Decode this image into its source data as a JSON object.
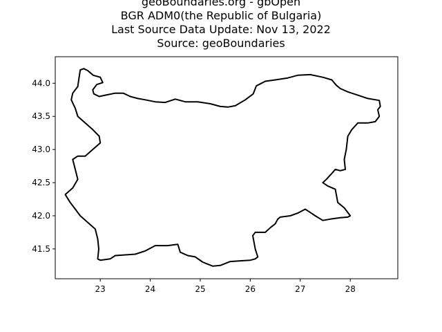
{
  "title_lines": [
    "geoBoundaries.org - gbOpen",
    "BGR ADM0(the Republic of Bulgaria)",
    "Last Source Data Update: Nov 13, 2022",
    "Source: geoBoundaries"
  ],
  "map": {
    "x_range": [
      22.1,
      28.95
    ],
    "y_range": [
      41.05,
      44.4
    ],
    "x_ticks": [
      23,
      24,
      25,
      26,
      27,
      28
    ],
    "y_ticks": [
      41.5,
      42.0,
      42.5,
      43.0,
      43.5,
      44.0
    ],
    "x_tick_labels": [
      "23",
      "24",
      "25",
      "26",
      "27",
      "28"
    ],
    "y_tick_labels": [
      "41.5",
      "42.0",
      "42.5",
      "43.0",
      "43.5",
      "44.0"
    ],
    "boundary_color": "#000000",
    "boundary": [
      [
        22.67,
        44.22
      ],
      [
        22.75,
        44.19
      ],
      [
        22.86,
        44.12
      ],
      [
        23.0,
        44.09
      ],
      [
        23.05,
        44.01
      ],
      [
        22.93,
        43.98
      ],
      [
        22.85,
        43.9
      ],
      [
        22.87,
        43.84
      ],
      [
        22.98,
        43.8
      ],
      [
        23.1,
        43.82
      ],
      [
        23.3,
        43.85
      ],
      [
        23.46,
        43.85
      ],
      [
        23.6,
        43.8
      ],
      [
        23.75,
        43.77
      ],
      [
        23.9,
        43.75
      ],
      [
        24.1,
        43.72
      ],
      [
        24.3,
        43.71
      ],
      [
        24.5,
        43.76
      ],
      [
        24.7,
        43.72
      ],
      [
        24.95,
        43.72
      ],
      [
        25.2,
        43.69
      ],
      [
        25.4,
        43.65
      ],
      [
        25.55,
        43.64
      ],
      [
        25.7,
        43.66
      ],
      [
        25.9,
        43.75
      ],
      [
        26.06,
        43.84
      ],
      [
        26.12,
        43.96
      ],
      [
        26.3,
        44.03
      ],
      [
        26.5,
        44.05
      ],
      [
        26.75,
        44.08
      ],
      [
        26.95,
        44.12
      ],
      [
        27.2,
        44.13
      ],
      [
        27.45,
        44.09
      ],
      [
        27.63,
        44.05
      ],
      [
        27.72,
        43.97
      ],
      [
        27.8,
        43.92
      ],
      [
        27.95,
        43.87
      ],
      [
        28.15,
        43.82
      ],
      [
        28.35,
        43.77
      ],
      [
        28.58,
        43.74
      ],
      [
        28.6,
        43.65
      ],
      [
        28.55,
        43.6
      ],
      [
        28.58,
        43.5
      ],
      [
        28.5,
        43.42
      ],
      [
        28.35,
        43.4
      ],
      [
        28.15,
        43.4
      ],
      [
        28.03,
        43.3
      ],
      [
        27.95,
        43.2
      ],
      [
        27.92,
        43.0
      ],
      [
        27.88,
        42.85
      ],
      [
        27.9,
        42.7
      ],
      [
        27.8,
        42.68
      ],
      [
        27.7,
        42.7
      ],
      [
        27.62,
        42.63
      ],
      [
        27.52,
        42.55
      ],
      [
        27.45,
        42.5
      ],
      [
        27.55,
        42.45
      ],
      [
        27.7,
        42.4
      ],
      [
        27.75,
        42.2
      ],
      [
        27.88,
        42.12
      ],
      [
        28.0,
        42.0
      ],
      [
        27.95,
        41.98
      ],
      [
        27.8,
        41.97
      ],
      [
        27.6,
        41.95
      ],
      [
        27.45,
        41.93
      ],
      [
        27.3,
        42.0
      ],
      [
        27.2,
        42.05
      ],
      [
        27.1,
        42.1
      ],
      [
        26.95,
        42.04
      ],
      [
        26.8,
        42.0
      ],
      [
        26.6,
        41.98
      ],
      [
        26.55,
        41.95
      ],
      [
        26.5,
        41.88
      ],
      [
        26.4,
        41.82
      ],
      [
        26.3,
        41.75
      ],
      [
        26.1,
        41.75
      ],
      [
        26.05,
        41.7
      ],
      [
        26.1,
        41.5
      ],
      [
        26.15,
        41.38
      ],
      [
        26.1,
        41.35
      ],
      [
        26.0,
        41.33
      ],
      [
        25.8,
        41.32
      ],
      [
        25.6,
        41.31
      ],
      [
        25.4,
        41.25
      ],
      [
        25.25,
        41.24
      ],
      [
        25.05,
        41.3
      ],
      [
        24.9,
        41.38
      ],
      [
        24.75,
        41.4
      ],
      [
        24.6,
        41.45
      ],
      [
        24.55,
        41.57
      ],
      [
        24.35,
        41.55
      ],
      [
        24.1,
        41.55
      ],
      [
        23.9,
        41.47
      ],
      [
        23.7,
        41.42
      ],
      [
        23.5,
        41.41
      ],
      [
        23.3,
        41.4
      ],
      [
        23.2,
        41.35
      ],
      [
        23.0,
        41.33
      ],
      [
        22.95,
        41.35
      ],
      [
        22.97,
        41.5
      ],
      [
        22.95,
        41.65
      ],
      [
        22.9,
        41.8
      ],
      [
        22.75,
        41.9
      ],
      [
        22.6,
        42.0
      ],
      [
        22.5,
        42.1
      ],
      [
        22.4,
        42.2
      ],
      [
        22.3,
        42.32
      ],
      [
        22.45,
        42.42
      ],
      [
        22.55,
        42.55
      ],
      [
        22.5,
        42.7
      ],
      [
        22.45,
        42.85
      ],
      [
        22.55,
        42.9
      ],
      [
        22.7,
        42.9
      ],
      [
        22.85,
        43.0
      ],
      [
        23.0,
        43.1
      ],
      [
        22.98,
        43.2
      ],
      [
        22.85,
        43.3
      ],
      [
        22.7,
        43.4
      ],
      [
        22.55,
        43.5
      ],
      [
        22.5,
        43.62
      ],
      [
        22.42,
        43.75
      ],
      [
        22.45,
        43.85
      ],
      [
        22.55,
        43.95
      ],
      [
        22.57,
        44.05
      ],
      [
        22.6,
        44.2
      ],
      [
        22.67,
        44.22
      ]
    ]
  }
}
